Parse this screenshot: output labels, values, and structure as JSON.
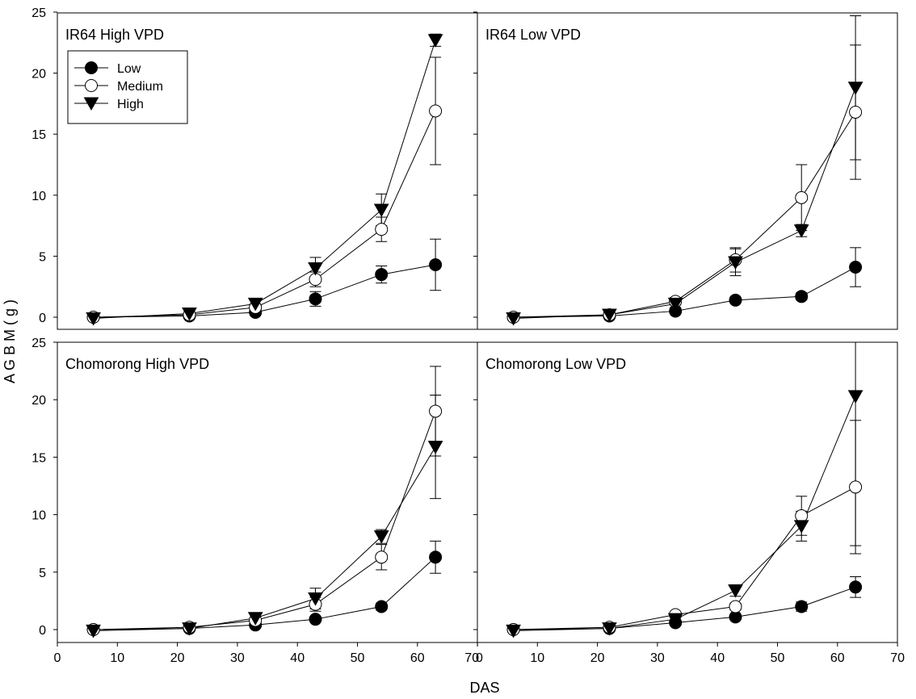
{
  "figure": {
    "ylabel": "A G B M ( g )",
    "xlabel": "DAS",
    "legend": [
      {
        "name": "Low",
        "marker": "filled-circle"
      },
      {
        "name": "Medium",
        "marker": "open-circle"
      },
      {
        "name": "High",
        "marker": "filled-triangle-down"
      }
    ]
  },
  "chart_data": [
    {
      "type": "line",
      "title": "IR64 High VPD",
      "x": [
        6,
        22,
        33,
        43,
        54,
        63
      ],
      "xlim": [
        0,
        70
      ],
      "ylim": [
        0,
        25
      ],
      "xticks": [
        0,
        10,
        20,
        30,
        40,
        50,
        60,
        70
      ],
      "yticks": [
        0,
        5,
        10,
        15,
        20,
        25
      ],
      "legend": "top-left",
      "series": [
        {
          "name": "Low",
          "values": [
            0.0,
            0.1,
            0.4,
            1.5,
            3.5,
            4.3
          ],
          "errors": [
            0.1,
            0.2,
            0.2,
            0.6,
            0.7,
            2.1
          ]
        },
        {
          "name": "Medium",
          "values": [
            0.0,
            0.2,
            0.8,
            3.1,
            7.2,
            16.9
          ],
          "errors": [
            0.1,
            0.2,
            0.3,
            0.6,
            1.0,
            4.4
          ]
        },
        {
          "name": "High",
          "values": [
            -0.1,
            0.3,
            1.1,
            4.0,
            8.8,
            22.7
          ],
          "errors": [
            0.1,
            0.2,
            0.3,
            0.9,
            1.3,
            0.5
          ]
        }
      ]
    },
    {
      "type": "line",
      "title": "IR64 Low VPD",
      "x": [
        6,
        22,
        33,
        43,
        54,
        63
      ],
      "xlim": [
        0,
        70
      ],
      "ylim": [
        0,
        25
      ],
      "xticks": [
        0,
        10,
        20,
        30,
        40,
        50,
        60,
        70
      ],
      "yticks": [
        0,
        5,
        10,
        15,
        20,
        25
      ],
      "series": [
        {
          "name": "Low",
          "values": [
            0.0,
            0.1,
            0.5,
            1.4,
            1.7,
            4.1
          ],
          "errors": [
            0.1,
            0.1,
            0.1,
            0.2,
            0.3,
            1.6
          ]
        },
        {
          "name": "Medium",
          "values": [
            0.0,
            0.2,
            1.3,
            4.7,
            9.8,
            16.8
          ],
          "errors": [
            0.1,
            0.2,
            0.3,
            1.0,
            2.7,
            5.5
          ]
        },
        {
          "name": "High",
          "values": [
            -0.1,
            0.2,
            1.1,
            4.5,
            7.1,
            18.8
          ],
          "errors": [
            0.1,
            0.1,
            0.3,
            1.1,
            0.5,
            5.9
          ]
        }
      ]
    },
    {
      "type": "line",
      "title": "Chomorong High VPD",
      "x": [
        6,
        22,
        33,
        43,
        54,
        63
      ],
      "xlim": [
        0,
        70
      ],
      "ylim": [
        0,
        25
      ],
      "xticks": [
        0,
        10,
        20,
        30,
        40,
        50,
        60,
        70
      ],
      "yticks": [
        0,
        5,
        10,
        15,
        20,
        25
      ],
      "series": [
        {
          "name": "Low",
          "values": [
            0.0,
            0.1,
            0.4,
            0.9,
            2.0,
            6.3
          ],
          "errors": [
            0.1,
            0.1,
            0.1,
            0.2,
            0.3,
            1.4
          ]
        },
        {
          "name": "Medium",
          "values": [
            0.0,
            0.2,
            0.8,
            2.2,
            6.3,
            19.0
          ],
          "errors": [
            0.1,
            0.1,
            0.3,
            0.6,
            1.1,
            3.9
          ]
        },
        {
          "name": "High",
          "values": [
            -0.1,
            0.1,
            1.0,
            2.7,
            8.1,
            15.9
          ],
          "errors": [
            0.1,
            0.1,
            0.3,
            0.9,
            0.6,
            4.5
          ]
        }
      ]
    },
    {
      "type": "line",
      "title": "Chomorong Low VPD",
      "x": [
        6,
        22,
        33,
        43,
        54,
        63
      ],
      "xlim": [
        0,
        70
      ],
      "ylim": [
        0,
        25
      ],
      "xticks": [
        0,
        10,
        20,
        30,
        40,
        50,
        60,
        70
      ],
      "yticks": [
        0,
        5,
        10,
        15,
        20,
        25
      ],
      "series": [
        {
          "name": "Low",
          "values": [
            0.0,
            0.1,
            0.6,
            1.1,
            2.0,
            3.7
          ],
          "errors": [
            0.1,
            0.1,
            0.1,
            0.2,
            0.4,
            0.9
          ]
        },
        {
          "name": "Medium",
          "values": [
            0.0,
            0.2,
            1.3,
            2.0,
            9.9,
            12.4
          ],
          "errors": [
            0.1,
            0.1,
            0.2,
            0.3,
            1.7,
            5.8
          ]
        },
        {
          "name": "High",
          "values": [
            -0.1,
            0.1,
            0.9,
            3.4,
            9.0,
            20.3
          ],
          "errors": [
            0.1,
            0.1,
            0.3,
            0.5,
            1.3,
            13.0
          ]
        }
      ]
    }
  ]
}
